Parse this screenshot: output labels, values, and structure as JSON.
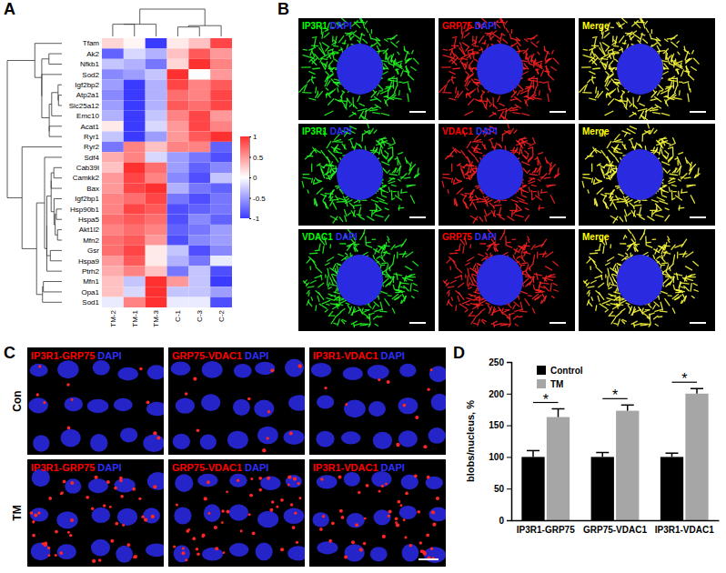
{
  "chart_data": [
    {
      "type": "heatmap",
      "title": "A",
      "rows": [
        "Tfam",
        "Ak2",
        "Nfkb1",
        "Sod2",
        "Igf2bp2",
        "Atp2a1",
        "Slc25a12",
        "Emc10",
        "Acat1",
        "Ryr1",
        "Ryr2",
        "Sdf4",
        "Cab39l",
        "Camkk2",
        "Bax",
        "Igf2bp1",
        "Hsp90b1",
        "Hspa5",
        "Akt1l2",
        "Mfn2",
        "Gsr",
        "Hspa9",
        "Ptrh2",
        "Mfn1",
        "Opa1",
        "Sod1"
      ],
      "columns": [
        "TM-2",
        "TM-1",
        "TM-3",
        "C-1",
        "C-3",
        "C-2"
      ],
      "cells": [
        [
          0.2,
          0.05,
          -1,
          0.1,
          0.3,
          0.9
        ],
        [
          -0.8,
          -0.2,
          -0.4,
          0.3,
          0.8,
          0.5
        ],
        [
          -0.3,
          -0.4,
          -0.7,
          0.2,
          1,
          0.6
        ],
        [
          -0.6,
          -0.5,
          -0.3,
          1,
          0,
          0.5
        ],
        [
          -0.5,
          -1,
          -0.4,
          0.9,
          0.6,
          0.8
        ],
        [
          -0.6,
          -1,
          -0.4,
          0.7,
          0.6,
          0.9
        ],
        [
          -0.5,
          -1,
          -0.4,
          0.8,
          0.7,
          0.9
        ],
        [
          -0.4,
          -1,
          -0.3,
          0.6,
          0.9,
          0.5
        ],
        [
          0.1,
          -1,
          -0.2,
          0.5,
          0.9,
          0.6
        ],
        [
          -0.3,
          -1,
          -0.5,
          0.5,
          0.8,
          1
        ],
        [
          -0.7,
          0.6,
          0.3,
          0.6,
          0.6,
          -0.8
        ],
        [
          0.4,
          0.6,
          -0.2,
          -0.5,
          -0.7,
          -0.9
        ],
        [
          0.3,
          1,
          0.7,
          -0.5,
          -0.8,
          -0.6
        ],
        [
          0.5,
          0.9,
          0.6,
          -0.6,
          -0.9,
          -0.3
        ],
        [
          0.5,
          0.9,
          1,
          -0.4,
          -0.7,
          -0.8
        ],
        [
          0.6,
          0.7,
          0.9,
          -0.7,
          -0.9,
          -0.7
        ],
        [
          0.6,
          0.9,
          0.8,
          -0.9,
          -0.8,
          -0.7
        ],
        [
          0.7,
          0.8,
          0.7,
          -0.9,
          -0.6,
          -0.8
        ],
        [
          0.6,
          0.7,
          0.6,
          -0.8,
          -0.7,
          -0.5
        ],
        [
          0.7,
          0.8,
          0.5,
          -0.9,
          -0.6,
          -0.5
        ],
        [
          0.7,
          0.9,
          0.1,
          -0.3,
          -0.9,
          -0.6
        ],
        [
          0.5,
          0.8,
          0.1,
          -0.4,
          -0.7,
          -0.1
        ],
        [
          0.4,
          0.6,
          0.3,
          -0.7,
          -0.3,
          -0.9
        ],
        [
          0.3,
          -0.3,
          1,
          0.5,
          -0.3,
          -1
        ],
        [
          0.3,
          -0.2,
          1,
          -0.3,
          -0.3,
          -0.5
        ],
        [
          -0.1,
          0.6,
          1,
          -0.1,
          -0.1,
          -0.9
        ]
      ],
      "colorbar": {
        "range": [
          -1,
          1
        ],
        "ticks": [
          1,
          0.5,
          0,
          -0.5,
          -1
        ]
      }
    },
    {
      "type": "image",
      "title": "B",
      "panels": [
        [
          [
            {
              "text": "IP3R1",
              "color": "#00ff00"
            },
            {
              "text": "DAPI",
              "color": "#2f2fff"
            }
          ],
          [
            {
              "text": "GRP75",
              "color": "#ff0000"
            },
            {
              "text": "DAPI",
              "color": "#2f2fff"
            }
          ],
          [
            {
              "text": "Merge",
              "color": "#ffff00"
            }
          ]
        ],
        [
          [
            {
              "text": "IP3R1",
              "color": "#00ff00"
            },
            {
              "text": "DAPI",
              "color": "#2f2fff"
            }
          ],
          [
            {
              "text": "VDAC1",
              "color": "#ff0000"
            },
            {
              "text": "DAPI",
              "color": "#2f2fff"
            }
          ],
          [
            {
              "text": "Merge",
              "color": "#ffff00"
            }
          ]
        ],
        [
          [
            {
              "text": "VDAC1",
              "color": "#00ff00"
            },
            {
              "text": "DAPI",
              "color": "#2f2fff"
            }
          ],
          [
            {
              "text": "GRP75",
              "color": "#ff0000"
            },
            {
              "text": "DAPI",
              "color": "#2f2fff"
            }
          ],
          [
            {
              "text": "Merge",
              "color": "#ffff00"
            }
          ]
        ]
      ]
    },
    {
      "type": "image",
      "title": "C",
      "row_labels": [
        "Con",
        "TM"
      ],
      "panels": [
        [
          [
            {
              "text": "IP3R1-GRP75",
              "color": "#ff0000"
            },
            {
              "text": "DAPI",
              "color": "#2f2fff"
            }
          ],
          [
            {
              "text": "GRP75-VDAC1",
              "color": "#ff0000"
            },
            {
              "text": "DAPI",
              "color": "#2f2fff"
            }
          ],
          [
            {
              "text": "IP3R1-VDAC1",
              "color": "#ff0000"
            },
            {
              "text": "DAPI",
              "color": "#2f2fff"
            }
          ]
        ],
        [
          [
            {
              "text": "IP3R1-GRP75",
              "color": "#ff0000"
            },
            {
              "text": "DAPI",
              "color": "#2f2fff"
            }
          ],
          [
            {
              "text": "GRP75-VDAC1",
              "color": "#ff0000"
            },
            {
              "text": "DAPI",
              "color": "#2f2fff"
            }
          ],
          [
            {
              "text": "IP3R1-VDAC1",
              "color": "#ff0000"
            },
            {
              "text": "DAPI",
              "color": "#2f2fff"
            }
          ]
        ]
      ]
    },
    {
      "type": "bar",
      "title": "D",
      "categories": [
        "IP3R1-GRP75",
        "GRP75-VDAC1",
        "IP3R1-VDAC1"
      ],
      "series": [
        {
          "name": "Control",
          "color": "#000000",
          "values": [
            100,
            100,
            100
          ],
          "error": [
            10,
            7,
            6
          ]
        },
        {
          "name": "TM",
          "color": "#a6a6a6",
          "values": [
            163,
            173,
            200
          ],
          "error": [
            13,
            9,
            8
          ]
        }
      ],
      "y_label": "blobs/nucleus, %",
      "ylim": [
        0,
        250
      ],
      "yticks": [
        0,
        50,
        100,
        150,
        200,
        250
      ],
      "legend": "top-left",
      "annotations": [
        {
          "text": "*",
          "category": "IP3R1-GRP75"
        },
        {
          "text": "*",
          "category": "GRP75-VDAC1"
        },
        {
          "text": "*",
          "category": "IP3R1-VDAC1"
        }
      ]
    }
  ]
}
